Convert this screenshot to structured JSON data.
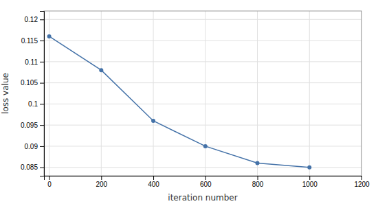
{
  "chart_data": {
    "type": "line",
    "x": [
      0,
      200,
      400,
      600,
      800,
      1000
    ],
    "y": [
      0.116,
      0.108,
      0.096,
      0.09,
      0.086,
      0.085
    ],
    "color": "#4472a8",
    "marker": "circle",
    "xlabel": "iteration number",
    "ylabel": "loss value",
    "xlim": [
      -20,
      1200
    ],
    "ylim": [
      0.083,
      0.122
    ],
    "xticks": [
      0,
      200,
      400,
      600,
      800,
      1000,
      1200
    ],
    "yticks": [
      0.085,
      0.09,
      0.095,
      0.1,
      0.105,
      0.11,
      0.115,
      0.12
    ],
    "grid": true
  }
}
